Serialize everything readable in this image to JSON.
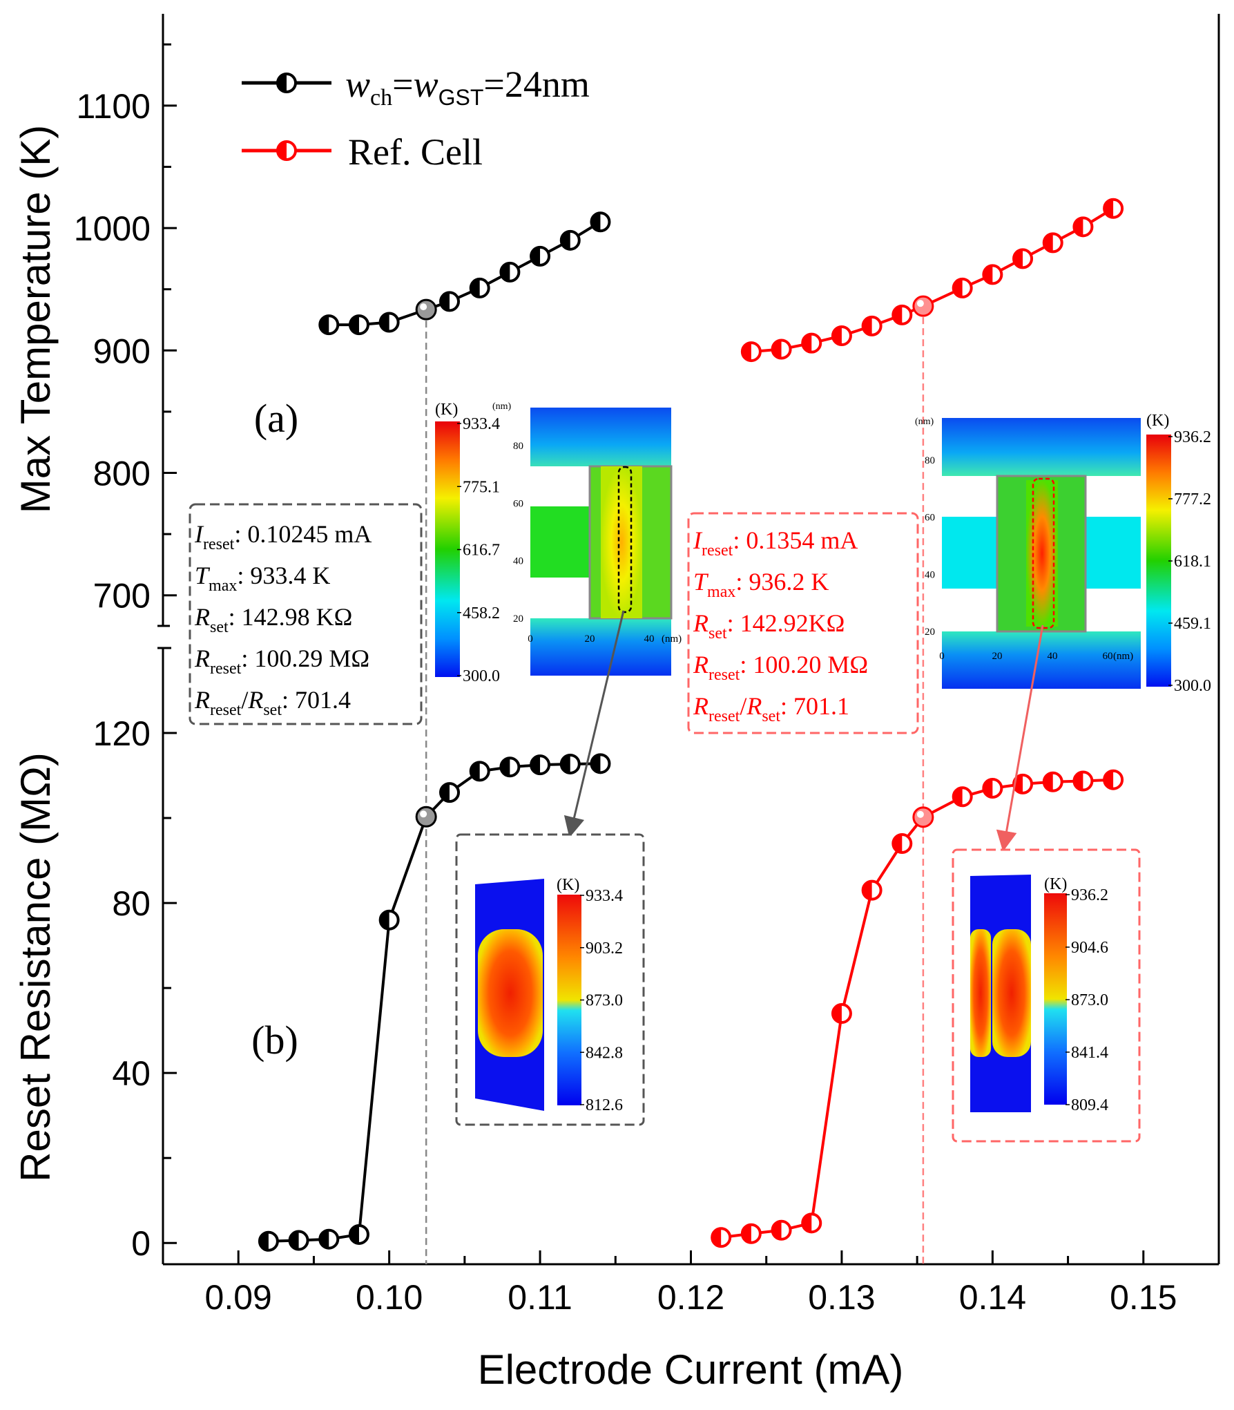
{
  "chart_data": [
    {
      "id": "a",
      "type": "line",
      "panel_label": "(a)",
      "ylabel": "Max Temperature (K)",
      "xlim": [
        0.085,
        0.155
      ],
      "ylim": [
        675,
        1175
      ],
      "yticks": [
        "700",
        "800",
        "900",
        "1000",
        "1100"
      ],
      "series": [
        {
          "name": "w_ch = w_GST = 24nm",
          "color": "#000000",
          "x": [
            0.096,
            0.098,
            0.1,
            0.10245,
            0.104,
            0.106,
            0.108,
            0.11,
            0.112,
            0.114
          ],
          "y": [
            921,
            921,
            923,
            933.4,
            940,
            951,
            964,
            977,
            990,
            1005
          ]
        },
        {
          "name": "Ref. Cell",
          "color": "#ff0000",
          "x": [
            0.124,
            0.126,
            0.128,
            0.13,
            0.132,
            0.134,
            0.1354,
            0.138,
            0.14,
            0.142,
            0.144,
            0.146,
            0.148
          ],
          "y": [
            899,
            901,
            906,
            912,
            920,
            929,
            936.2,
            951,
            962,
            975,
            988,
            1001,
            1016
          ]
        }
      ]
    },
    {
      "id": "b",
      "type": "line",
      "panel_label": "(b)",
      "ylabel": "Reset Resistance (MΩ)",
      "xlabel": "Electrode Current (mA)",
      "xlim": [
        0.085,
        0.155
      ],
      "ylim": [
        -5,
        140
      ],
      "yticks": [
        "0",
        "40",
        "80",
        "120"
      ],
      "xticks": [
        "0.09",
        "0.10",
        "0.11",
        "0.12",
        "0.13",
        "0.14",
        "0.15"
      ],
      "series": [
        {
          "name": "w_ch = w_GST = 24nm",
          "color": "#000000",
          "x": [
            0.092,
            0.094,
            0.096,
            0.098,
            0.1,
            0.10245,
            0.104,
            0.106,
            0.108,
            0.11,
            0.112,
            0.114
          ],
          "y": [
            0.4,
            0.6,
            0.9,
            2.0,
            76,
            100.29,
            106,
            111,
            112,
            112.5,
            112.7,
            112.8
          ]
        },
        {
          "name": "Ref. Cell",
          "color": "#ff0000",
          "x": [
            0.122,
            0.124,
            0.126,
            0.128,
            0.13,
            0.132,
            0.134,
            0.1354,
            0.138,
            0.14,
            0.142,
            0.144,
            0.146,
            0.148
          ],
          "y": [
            1.3,
            2.2,
            3.0,
            4.7,
            54,
            83,
            94,
            100.2,
            105,
            107,
            108,
            108.5,
            108.7,
            109
          ]
        }
      ]
    }
  ],
  "legend": {
    "black": {
      "w1": "w",
      "sub1": "ch",
      "eq1": "=",
      "w2": "w",
      "sub2": "GST",
      "rest": "=24nm"
    },
    "red": {
      "label": "Ref. Cell"
    }
  },
  "info_black": {
    "rows": [
      {
        "sym": "I",
        "sub": "reset",
        "val": ":  0.10245 mA"
      },
      {
        "sym": "T",
        "sub": "max",
        "val": ":  933.4 K"
      },
      {
        "sym": "R",
        "sub": "set",
        "val": ":    142.98 KΩ"
      },
      {
        "sym": "R",
        "sub": "reset",
        "val": ": 100.29 MΩ"
      },
      {
        "sym": "R",
        "sub": "reset",
        "slash": "/",
        "sym2": "R",
        "sub2": "set",
        "val": ": 701.4"
      }
    ]
  },
  "info_red": {
    "rows": [
      {
        "sym": "I",
        "sub": "reset",
        "val": ":  0.1354 mA"
      },
      {
        "sym": "T",
        "sub": "max",
        "val": ":  936.2 K"
      },
      {
        "sym": "R",
        "sub": "set",
        "val": ":   142.92KΩ"
      },
      {
        "sym": "R",
        "sub": "reset",
        "val": ": 100.20 MΩ"
      },
      {
        "sym": "R",
        "sub": "reset",
        "slash": "/",
        "sym2": "R",
        "sub2": "set",
        "val": ": 701.1"
      }
    ]
  },
  "inset_black_map": {
    "unit": "(K)",
    "unit_nm": "(nm)",
    "cbar": [
      "933.4",
      "775.1",
      "616.7",
      "458.2",
      "300.0"
    ],
    "yticks": [
      "80",
      "60",
      "40",
      "20"
    ],
    "xticks": [
      "0",
      "20",
      "40"
    ],
    "x_unit": "(nm)"
  },
  "inset_red_map": {
    "unit": "(K)",
    "unit_nm": "(nm)",
    "cbar": [
      "936.2",
      "777.2",
      "618.1",
      "459.1",
      "300.0"
    ],
    "yticks": [
      "80",
      "60",
      "40",
      "20"
    ],
    "xticks": [
      "0",
      "20",
      "40",
      "60"
    ],
    "x_unit": "(nm)"
  },
  "inset_black_zoom": {
    "unit": "(K)",
    "cbar": [
      "933.4",
      "903.2",
      "873.0",
      "842.8",
      "812.6"
    ]
  },
  "inset_red_zoom": {
    "unit": "(K)",
    "cbar": [
      "936.2",
      "904.6",
      "873.0",
      "841.4",
      "809.4"
    ]
  },
  "colors": {
    "black": "#000000",
    "red": "#ff0000",
    "gray_box": "#555555",
    "red_box": "#ff6666"
  }
}
